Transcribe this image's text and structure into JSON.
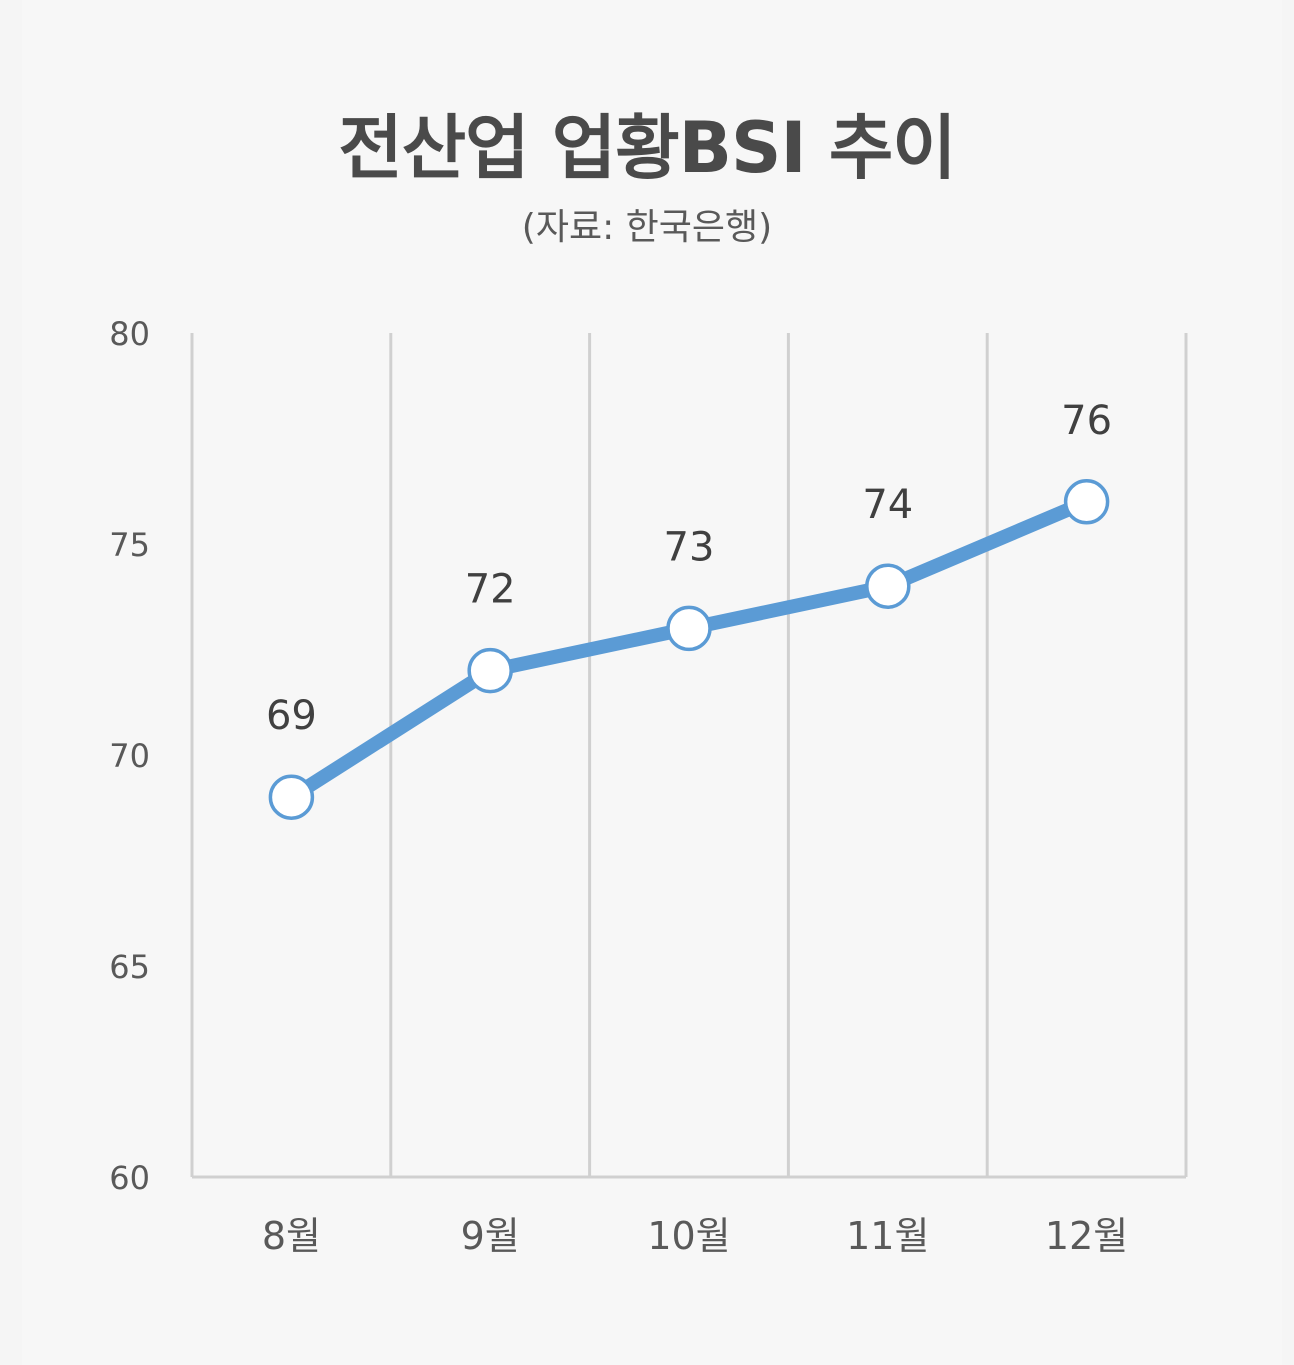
{
  "chart_data": {
    "type": "line",
    "title": "전산업 업황BSI 추이",
    "subtitle": "(자료: 한국은행)",
    "categories": [
      "8월",
      "9월",
      "10월",
      "11월",
      "12월"
    ],
    "series": [
      {
        "values": [
          69,
          72,
          73,
          74,
          76
        ]
      }
    ],
    "ylim": [
      60,
      80
    ],
    "yticks": [
      60,
      65,
      70,
      75,
      80
    ],
    "data_labels": true,
    "grid": "vertical",
    "legend": "none",
    "colors": {
      "line": "#5b9bd5",
      "marker_fill": "#ffffff",
      "grid": "#d0d0d0"
    }
  }
}
